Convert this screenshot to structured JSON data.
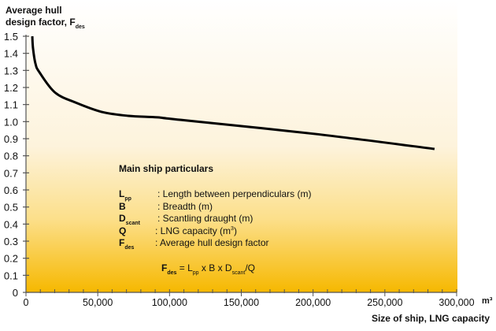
{
  "chart_data": {
    "type": "line",
    "ylabel": {
      "main": "Average hull",
      "line2": "design factor, F",
      "sub": "des"
    },
    "xlabel": "Size of ship, LNG capacity",
    "x_unit": "m³",
    "xlim": [
      0,
      300000
    ],
    "ylim": [
      0,
      1.5
    ],
    "x_ticks": [
      0,
      50000,
      100000,
      150000,
      200000,
      250000,
      300000
    ],
    "x_tick_labels": [
      "0",
      "50,000",
      "100,000",
      "150,000",
      "200,000",
      "250,000",
      "300,000"
    ],
    "x_minor_step": 10000,
    "y_ticks": [
      0,
      0.1,
      0.2,
      0.3,
      0.4,
      0.5,
      0.6,
      0.7,
      0.8,
      0.9,
      1.0,
      1.1,
      1.2,
      1.3,
      1.4,
      1.5
    ],
    "y_tick_labels": [
      "0",
      "0.1",
      "0.2",
      "0.3",
      "0.4",
      "0.5",
      "0.6",
      "0.7",
      "0.8",
      "0.9",
      "1.0",
      "1.1",
      "1.2",
      "1.3",
      "1.4",
      "1.5"
    ],
    "grid": false,
    "background": {
      "top": "#ffffff",
      "middle": "#fdf3dc",
      "bottom": "#f6b800"
    },
    "line_color": "#000000",
    "series": [
      {
        "x": [
          4400,
          4900,
          6600,
          9300,
          20300,
          35100,
          53200,
          71300,
          91600,
          108000,
          201300,
          284600
        ],
        "y": [
          1.5,
          1.43,
          1.34,
          1.29,
          1.17,
          1.11,
          1.056,
          1.034,
          1.025,
          1.01,
          0.928,
          0.84
        ]
      }
    ],
    "annotation": {
      "title": "Main ship particulars",
      "items": [
        {
          "sym": "L",
          "sub": "pp",
          "desc": ": Length between perpendiculars (m)"
        },
        {
          "sym": "B",
          "sub": "",
          "desc": ": Breadth (m)"
        },
        {
          "sym": "D",
          "sub": "scant",
          "desc": ": Scantling draught (m)"
        },
        {
          "sym": "Q",
          "sub": "",
          "desc": ": LNG capacity (m",
          "sup": "3",
          "desc_end": ")"
        },
        {
          "sym": "F",
          "sub": "des",
          "desc": ": Average hull design factor"
        }
      ],
      "formula": {
        "f": "F",
        "f_sub": "des",
        "eq": " = L",
        "l_sub": "pp",
        "mid": " x B x D",
        "d_sub": "scant",
        "end": "/Q"
      }
    }
  }
}
